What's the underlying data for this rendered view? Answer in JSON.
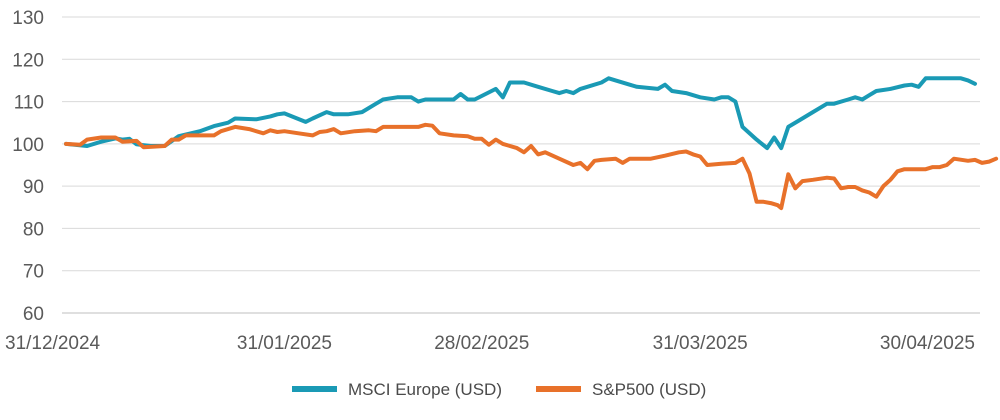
{
  "chart_data": {
    "type": "line",
    "title": "",
    "xlabel": "",
    "ylabel": "",
    "ylim": [
      60,
      130
    ],
    "yticks": [
      60,
      70,
      80,
      90,
      100,
      110,
      120,
      130
    ],
    "grid": "horizontal",
    "legend_position": "bottom-center",
    "x_tick_labels": [
      {
        "label": "31/12/2024",
        "day": 0
      },
      {
        "label": "31/01/2025",
        "day": 31
      },
      {
        "label": "28/02/2025",
        "day": 59
      },
      {
        "label": "31/03/2025",
        "day": 90
      },
      {
        "label": "30/04/2025",
        "day": 120
      }
    ],
    "x_range_days": [
      0,
      129
    ],
    "series": [
      {
        "name": "MSCI Europe (USD)",
        "color": "#1A9AB5",
        "points": [
          [
            0,
            100
          ],
          [
            3,
            99.5
          ],
          [
            5,
            100.5
          ],
          [
            7,
            101.3
          ],
          [
            8,
            101
          ],
          [
            9,
            101.2
          ],
          [
            10,
            99.9
          ],
          [
            12,
            99.5
          ],
          [
            14,
            99.5
          ],
          [
            16,
            101.8
          ],
          [
            19,
            103
          ],
          [
            21,
            104.2
          ],
          [
            23,
            105
          ],
          [
            24,
            106
          ],
          [
            27,
            105.8
          ],
          [
            29,
            106.5
          ],
          [
            30,
            107
          ],
          [
            31,
            107.2
          ],
          [
            34,
            105.2
          ],
          [
            35,
            106
          ],
          [
            37,
            107.5
          ],
          [
            38,
            107
          ],
          [
            40,
            107
          ],
          [
            42,
            107.5
          ],
          [
            44,
            109.5
          ],
          [
            45,
            110.5
          ],
          [
            47,
            111
          ],
          [
            49,
            111
          ],
          [
            50,
            110
          ],
          [
            51,
            110.5
          ],
          [
            53,
            110.5
          ],
          [
            55,
            110.5
          ],
          [
            56,
            111.8
          ],
          [
            57,
            110.5
          ],
          [
            58,
            110.5
          ],
          [
            61,
            113
          ],
          [
            62,
            111
          ],
          [
            63,
            114.5
          ],
          [
            65,
            114.5
          ],
          [
            67,
            113.5
          ],
          [
            69,
            112.5
          ],
          [
            70,
            112
          ],
          [
            71,
            112.5
          ],
          [
            72,
            112
          ],
          [
            73,
            113
          ],
          [
            74,
            113.5
          ],
          [
            76,
            114.5
          ],
          [
            77,
            115.5
          ],
          [
            78,
            115
          ],
          [
            80,
            114
          ],
          [
            81,
            113.5
          ],
          [
            84,
            113
          ],
          [
            85,
            114
          ],
          [
            86,
            112.5
          ],
          [
            88,
            112
          ],
          [
            90,
            111
          ],
          [
            92,
            110.5
          ],
          [
            93,
            111
          ],
          [
            94,
            111
          ],
          [
            95,
            110
          ],
          [
            96,
            104
          ],
          [
            98,
            101
          ],
          [
            99.5,
            99
          ],
          [
            100.5,
            101.5
          ],
          [
            101.5,
            99
          ],
          [
            102.5,
            104
          ],
          [
            104,
            105.5
          ],
          [
            106,
            107.5
          ],
          [
            108,
            109.5
          ],
          [
            109,
            109.5
          ],
          [
            111,
            110.5
          ],
          [
            112,
            111
          ],
          [
            113,
            110.5
          ],
          [
            114,
            111.5
          ],
          [
            115,
            112.5
          ],
          [
            117,
            113
          ],
          [
            119,
            113.8
          ],
          [
            120,
            114
          ],
          [
            121,
            113.5
          ],
          [
            122,
            115.5
          ],
          [
            124,
            115.5
          ],
          [
            127,
            115.5
          ],
          [
            128,
            115
          ],
          [
            129,
            114.2
          ]
        ]
      },
      {
        "name": "S&P500 (USD)",
        "color": "#E8712A",
        "points": [
          [
            0,
            100
          ],
          [
            2,
            99.8
          ],
          [
            3,
            101
          ],
          [
            5,
            101.5
          ],
          [
            7,
            101.5
          ],
          [
            8,
            100.5
          ],
          [
            10,
            100.7
          ],
          [
            11,
            99.2
          ],
          [
            14,
            99.5
          ],
          [
            15,
            101
          ],
          [
            16,
            101
          ],
          [
            17,
            102
          ],
          [
            21,
            102
          ],
          [
            22,
            103
          ],
          [
            24,
            104
          ],
          [
            26,
            103.5
          ],
          [
            28,
            102.5
          ],
          [
            29,
            103.2
          ],
          [
            30,
            102.8
          ],
          [
            31,
            103
          ],
          [
            33,
            102.5
          ],
          [
            35,
            102
          ],
          [
            36,
            102.8
          ],
          [
            37,
            103
          ],
          [
            38,
            103.5
          ],
          [
            39,
            102.5
          ],
          [
            41,
            103
          ],
          [
            43,
            103.2
          ],
          [
            44,
            103
          ],
          [
            45,
            104
          ],
          [
            50,
            104
          ],
          [
            51,
            104.5
          ],
          [
            52,
            104.3
          ],
          [
            53,
            102.5
          ],
          [
            55,
            102
          ],
          [
            57,
            101.8
          ],
          [
            58,
            101.2
          ],
          [
            59,
            101.2
          ],
          [
            60,
            99.8
          ],
          [
            61,
            101
          ],
          [
            62,
            100
          ],
          [
            64,
            99
          ],
          [
            65,
            98
          ],
          [
            66,
            99.5
          ],
          [
            67,
            97.5
          ],
          [
            68,
            98
          ],
          [
            70,
            96.5
          ],
          [
            72,
            95
          ],
          [
            73,
            95.5
          ],
          [
            74,
            94
          ],
          [
            75,
            96
          ],
          [
            76,
            96.2
          ],
          [
            78,
            96.5
          ],
          [
            79,
            95.5
          ],
          [
            80,
            96.5
          ],
          [
            83,
            96.5
          ],
          [
            85,
            97.2
          ],
          [
            87,
            98
          ],
          [
            88,
            98.2
          ],
          [
            89,
            97.5
          ],
          [
            90,
            97
          ],
          [
            91,
            95
          ],
          [
            93,
            95.3
          ],
          [
            95,
            95.5
          ],
          [
            96,
            96.5
          ],
          [
            97,
            93
          ],
          [
            98,
            86.3
          ],
          [
            99,
            86.3
          ],
          [
            100,
            86
          ],
          [
            101,
            85.5
          ],
          [
            101.5,
            84.8
          ],
          [
            102.5,
            92.8
          ],
          [
            103.5,
            89.5
          ],
          [
            104.5,
            91.2
          ],
          [
            106,
            91.5
          ],
          [
            108,
            92
          ],
          [
            109,
            91.8
          ],
          [
            110,
            89.5
          ],
          [
            111,
            89.8
          ],
          [
            112,
            89.8
          ],
          [
            113,
            89
          ],
          [
            114,
            88.5
          ],
          [
            115,
            87.5
          ],
          [
            116,
            90
          ],
          [
            117,
            91.5
          ],
          [
            118,
            93.5
          ],
          [
            119,
            94
          ],
          [
            122,
            94
          ],
          [
            123,
            94.5
          ],
          [
            124,
            94.5
          ],
          [
            125,
            95
          ],
          [
            126,
            96.5
          ],
          [
            128,
            96
          ],
          [
            129,
            96.2
          ],
          [
            130,
            95.5
          ],
          [
            131,
            95.8
          ],
          [
            132,
            96.5
          ]
        ]
      }
    ]
  }
}
